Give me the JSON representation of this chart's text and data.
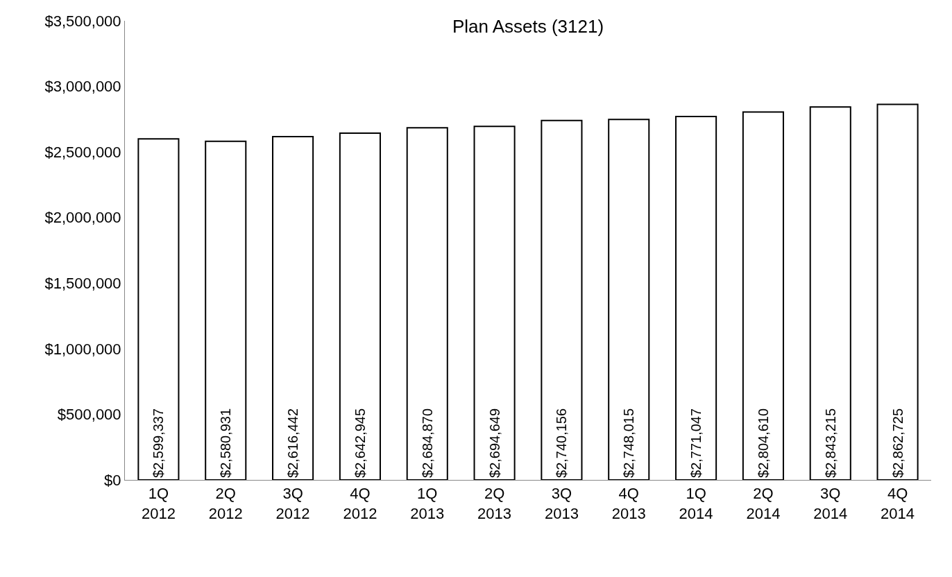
{
  "chart_data": {
    "type": "bar",
    "title": "Plan Assets (3121)",
    "categories": [
      "1Q\n2012",
      "2Q\n2012",
      "3Q\n2012",
      "4Q\n2012",
      "1Q\n2013",
      "2Q\n2013",
      "3Q\n2013",
      "4Q\n2013",
      "1Q\n2014",
      "2Q\n2014",
      "3Q\n2014",
      "4Q\n2014"
    ],
    "values": [
      2599337,
      2580931,
      2616442,
      2642945,
      2684870,
      2694649,
      2740156,
      2748015,
      2771047,
      2804610,
      2843215,
      2862725
    ],
    "value_labels": [
      "$2,599,337",
      "$2,580,931",
      "$2,616,442",
      "$2,642,945",
      "$2,684,870",
      "$2,694,649",
      "$2,740,156",
      "$2,748,015",
      "$2,771,047",
      "$2,804,610",
      "$2,843,215",
      "$2,862,725"
    ],
    "color": "#ffffff",
    "ylim": [
      0,
      3500000
    ],
    "yticks": [
      {
        "value": 0,
        "label": "$0"
      },
      {
        "value": 500000,
        "label": "$500,000"
      },
      {
        "value": 1000000,
        "label": "$1,000,000"
      },
      {
        "value": 1500000,
        "label": "$1,500,000"
      },
      {
        "value": 2000000,
        "label": "$2,000,000"
      },
      {
        "value": 2500000,
        "label": "$2,500,000"
      },
      {
        "value": 3000000,
        "label": "$3,000,000"
      },
      {
        "value": 3500000,
        "label": "$3,500,000"
      }
    ],
    "grid": false
  }
}
